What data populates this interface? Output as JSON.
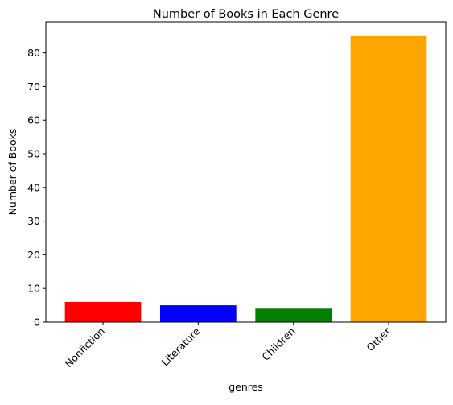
{
  "chart_data": {
    "type": "bar",
    "title": "Number of Books in Each Genre",
    "xlabel": "genres",
    "ylabel": "Number of Books",
    "categories": [
      "Nonfiction",
      "Literature",
      "Children",
      "Other"
    ],
    "values": [
      6,
      5,
      4,
      85
    ],
    "colors": [
      "#ff0000",
      "#0000ff",
      "#008000",
      "#ffa500"
    ],
    "ylim": [
      0,
      89.25
    ],
    "yticks": [
      0,
      10,
      20,
      30,
      40,
      50,
      60,
      70,
      80
    ],
    "grid": false,
    "legend": "none"
  }
}
